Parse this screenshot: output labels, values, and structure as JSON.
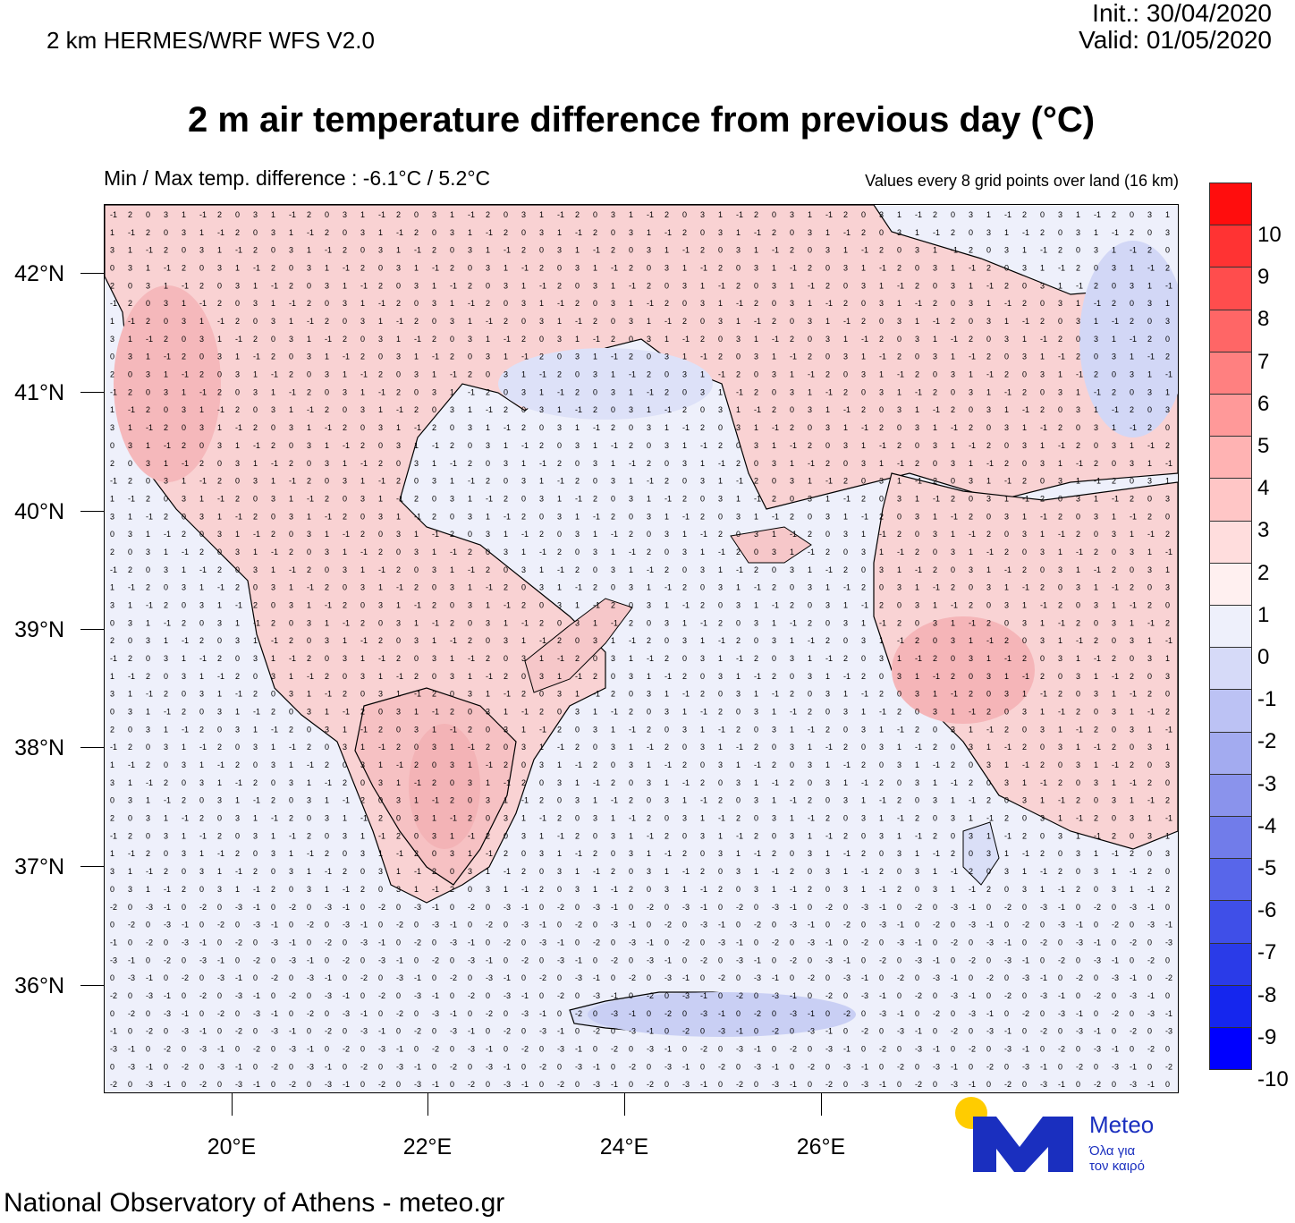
{
  "header": {
    "model": "2 km HERMES/WRF WFS V2.0",
    "init": "Init.:  30/04/2020",
    "valid": "Valid: 01/05/2020"
  },
  "title": "2 m air temperature difference from previous day (°C)",
  "minmax": "Min / Max temp. difference : -6.1°C / 5.2°C",
  "note": "Values every 8 grid points over land (16 km)",
  "footer": "National Observatory of Athens - meteo.gr",
  "logo": {
    "name": "Meteo",
    "tagline_1": "Όλα για",
    "tagline_2": "τον καιρό"
  },
  "lat_labels": [
    "42°N",
    "41°N",
    "40°N",
    "39°N",
    "38°N",
    "37°N",
    "36°N"
  ],
  "lon_labels": [
    "20°E",
    "22°E",
    "24°E",
    "26°E"
  ],
  "colorbar_labels": [
    "10",
    "9",
    "8",
    "7",
    "6",
    "5",
    "4",
    "3",
    "2",
    "1",
    "0",
    "-1",
    "-2",
    "-3",
    "-4",
    "-5",
    "-6",
    "-7",
    "-8",
    "-9",
    "-10"
  ],
  "colorbar_colors": [
    "#ff0d0d",
    "#ff3333",
    "#ff4d4d",
    "#ff6666",
    "#ff8080",
    "#ff9999",
    "#ffb3b3",
    "#ffc6c6",
    "#ffdddd",
    "#fff0f0",
    "#eef0fb",
    "#d6daf8",
    "#bcc2f4",
    "#a3abf0",
    "#8a93ec",
    "#717cea",
    "#5866ea",
    "#3f4fe8",
    "#2a3be8",
    "#1526ee",
    "#0000ff"
  ],
  "colors": {
    "land_warm": "#f8c7c9",
    "land_mild": "#fbdcdc",
    "sea": "#eef0fb",
    "cool": "#c9cff4",
    "logo_blue": "#1a2fbf",
    "logo_sun": "#ffcc00"
  }
}
